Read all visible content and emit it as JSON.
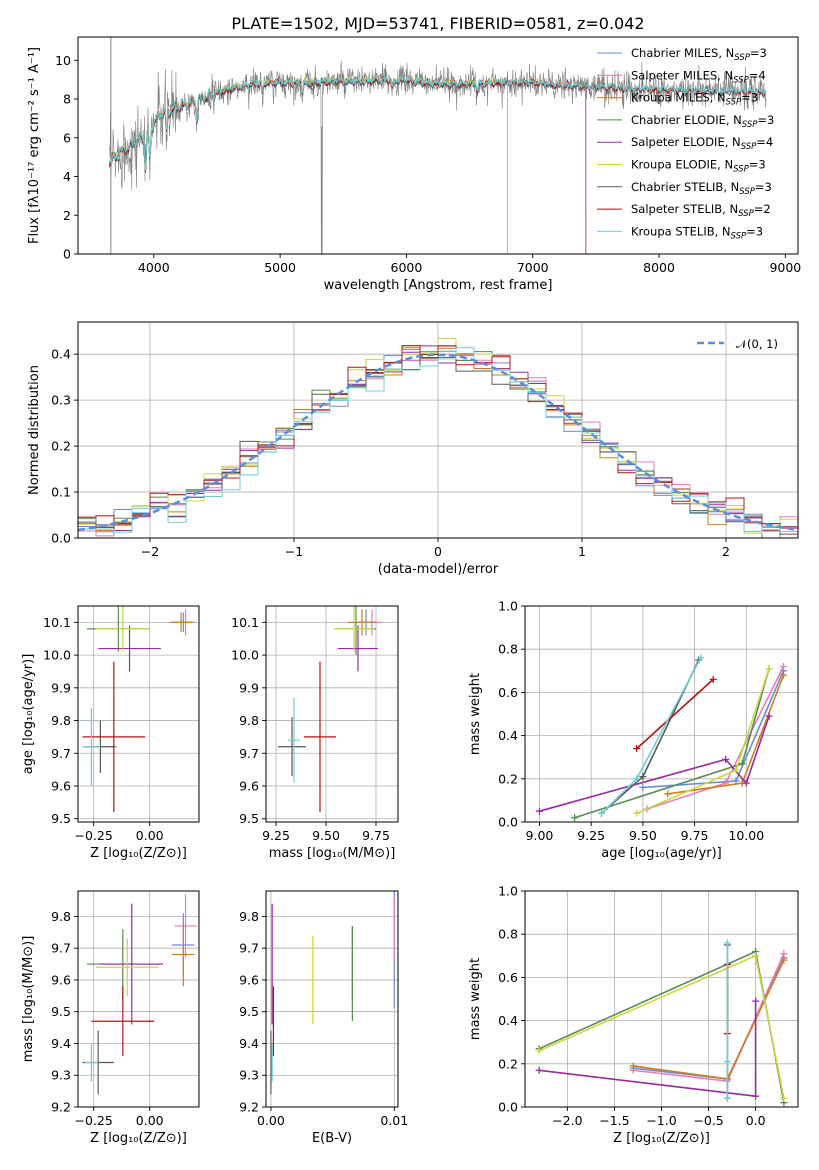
{
  "palette": [
    "#6b8cd7",
    "#e17fbd",
    "#d17d1f",
    "#5a8a55",
    "#9a2aa3",
    "#c9d840",
    "#5a5a5a",
    "#b31515",
    "#6bd0d4"
  ],
  "chart_data": [
    {
      "id": "spectrum",
      "type": "line",
      "title": "PLATE=1502, MJD=53741, FIBERID=0581, z=0.042",
      "xlabel": "wavelength [Angstrom, rest frame]",
      "ylabel": "Flux [fλ10⁻¹⁷ erg cm⁻² s⁻¹ A⁻¹]",
      "xlim": [
        3400,
        9100
      ],
      "ylim": [
        0,
        11.2
      ],
      "xticks": [
        4000,
        5000,
        6000,
        7000,
        8000,
        9000
      ],
      "yticks": [
        0,
        2,
        4,
        6,
        8,
        10
      ],
      "grid": false,
      "legend_position": "upper-right",
      "data_color": "#808080",
      "continuum": [
        [
          3650,
          4.7
        ],
        [
          3750,
          5.3
        ],
        [
          3850,
          5.7
        ],
        [
          3950,
          6.3
        ],
        [
          4050,
          7.2
        ],
        [
          4200,
          7.6
        ],
        [
          4400,
          8.1
        ],
        [
          4600,
          8.5
        ],
        [
          4800,
          8.8
        ],
        [
          5000,
          8.85
        ],
        [
          5200,
          8.8
        ],
        [
          5400,
          8.9
        ],
        [
          5600,
          8.9
        ],
        [
          5800,
          8.95
        ],
        [
          6000,
          8.95
        ],
        [
          6200,
          8.8
        ],
        [
          6400,
          8.75
        ],
        [
          6600,
          8.8
        ],
        [
          6800,
          8.85
        ],
        [
          7000,
          8.85
        ],
        [
          7200,
          8.7
        ],
        [
          7400,
          8.65
        ],
        [
          7600,
          8.6
        ],
        [
          7800,
          8.5
        ],
        [
          8000,
          8.5
        ],
        [
          8200,
          8.45
        ],
        [
          8400,
          8.4
        ],
        [
          8600,
          8.4
        ],
        [
          8800,
          8.35
        ]
      ],
      "models": [
        {
          "name": "Chabrier MILES, N_SSP=3",
          "xend": 7420
        },
        {
          "name": "Salpeter MILES, N_SSP=4",
          "xend": 7420
        },
        {
          "name": "Kroupa MILES, N_SSP=3",
          "xend": 7420
        },
        {
          "name": "Chabrier ELODIE, N_SSP=3",
          "xend": 6800
        },
        {
          "name": "Salpeter ELODIE, N_SSP=4",
          "xend": 6800
        },
        {
          "name": "Kroupa ELODIE, N_SSP=3",
          "xend": 6800
        },
        {
          "name": "Chabrier STELIB, N_SSP=3",
          "xend": 8850
        },
        {
          "name": "Salpeter STELIB, N_SSP=2",
          "xend": 8850
        },
        {
          "name": "Kroupa STELIB, N_SSP=3",
          "xend": 8850
        }
      ]
    },
    {
      "id": "residuals",
      "type": "histogram",
      "xlabel": "(data-model)/error",
      "ylabel": "Normed distribution",
      "xlim": [
        -2.5,
        2.5
      ],
      "ylim": [
        0,
        0.47
      ],
      "xticks": [
        -2,
        -1,
        0,
        1,
        2
      ],
      "yticks": [
        0.0,
        0.1,
        0.2,
        0.3,
        0.4
      ],
      "grid": true,
      "bin_width": 0.125,
      "legend_position": "upper-right",
      "reference_curve": {
        "name": "𝒩(0, 1)",
        "mean": 0,
        "sigma": 1,
        "color": "#5b8fe0"
      }
    },
    {
      "id": "age-vs-z",
      "type": "errorbar",
      "xlabel": "Z [log₁₀(Z/Z⊙)]",
      "ylabel": "age  [log₁₀(age/yr)]",
      "xlim": [
        -0.32,
        0.22
      ],
      "ylim": [
        9.49,
        10.15
      ],
      "xticks": [
        -0.25,
        0.0
      ],
      "yticks": [
        9.5,
        9.6,
        9.7,
        9.8,
        9.9,
        10.0,
        10.1
      ],
      "grid": true,
      "points": [
        {
          "x": 0.15,
          "y": 10.1,
          "xerr": 0.05,
          "yerr": 0.03
        },
        {
          "x": 0.16,
          "y": 10.1,
          "xerr": 0.04,
          "yerr": 0.04
        },
        {
          "x": 0.14,
          "y": 10.1,
          "xerr": 0.05,
          "yerr": 0.03
        },
        {
          "x": -0.14,
          "y": 10.08,
          "xerr": 0.14,
          "yerr": 0.07
        },
        {
          "x": -0.09,
          "y": 10.02,
          "xerr": 0.14,
          "yerr": 0.07
        },
        {
          "x": -0.12,
          "y": 10.08,
          "xerr": 0.12,
          "yerr": 0.07
        },
        {
          "x": -0.22,
          "y": 9.72,
          "xerr": 0.07,
          "yerr": 0.08
        },
        {
          "x": -0.16,
          "y": 9.75,
          "xerr": 0.14,
          "yerr": 0.23
        },
        {
          "x": -0.26,
          "y": 9.72,
          "xerr": 0.04,
          "yerr": 0.12
        }
      ]
    },
    {
      "id": "age-vs-mass",
      "type": "errorbar",
      "xlabel": "mass [log₁₀(M/M⊙)]",
      "ylabel": "",
      "xlim": [
        9.2,
        9.86
      ],
      "ylim": [
        9.49,
        10.15
      ],
      "xticks": [
        9.25,
        9.5,
        9.75
      ],
      "yticks": [
        9.5,
        9.6,
        9.7,
        9.8,
        9.9,
        10.0,
        10.1
      ],
      "grid": true,
      "points": [
        {
          "x": 9.7,
          "y": 10.1,
          "xerr": 0.05,
          "yerr": 0.04
        },
        {
          "x": 9.73,
          "y": 10.1,
          "xerr": 0.05,
          "yerr": 0.04
        },
        {
          "x": 9.68,
          "y": 10.1,
          "xerr": 0.07,
          "yerr": 0.04
        },
        {
          "x": 9.65,
          "y": 10.08,
          "xerr": 0.1,
          "yerr": 0.08
        },
        {
          "x": 9.66,
          "y": 10.02,
          "xerr": 0.1,
          "yerr": 0.07
        },
        {
          "x": 9.64,
          "y": 10.08,
          "xerr": 0.1,
          "yerr": 0.07
        },
        {
          "x": 9.33,
          "y": 9.72,
          "xerr": 0.07,
          "yerr": 0.09
        },
        {
          "x": 9.47,
          "y": 9.75,
          "xerr": 0.08,
          "yerr": 0.23
        },
        {
          "x": 9.34,
          "y": 9.74,
          "xerr": 0.03,
          "yerr": 0.13
        }
      ]
    },
    {
      "id": "weight-vs-age",
      "type": "line",
      "xlabel": "age  [log₁₀(age/yr)]",
      "ylabel": "mass weight",
      "xlim": [
        8.93,
        10.25
      ],
      "ylim": [
        0,
        1.0
      ],
      "xticks": [
        9.0,
        9.25,
        9.5,
        9.75,
        10.0
      ],
      "yticks": [
        0.0,
        0.2,
        0.4,
        0.6,
        0.8,
        1.0
      ],
      "grid": true,
      "series": [
        {
          "points": [
            [
              9.5,
              0.16
            ],
            [
              9.95,
              0.19
            ],
            [
              10.18,
              0.7
            ]
          ]
        },
        {
          "points": [
            [
              9.52,
              0.06
            ],
            [
              9.9,
              0.18
            ],
            [
              10.18,
              0.72
            ]
          ]
        },
        {
          "points": [
            [
              9.62,
              0.13
            ],
            [
              9.98,
              0.18
            ],
            [
              10.18,
              0.68
            ]
          ]
        },
        {
          "points": [
            [
              9.17,
              0.02
            ],
            [
              9.98,
              0.27
            ],
            [
              10.11,
              0.71
            ]
          ]
        },
        {
          "points": [
            [
              9.0,
              0.05
            ],
            [
              9.9,
              0.29
            ],
            [
              10.0,
              0.18
            ],
            [
              10.11,
              0.49
            ]
          ]
        },
        {
          "points": [
            [
              9.47,
              0.04
            ],
            [
              9.95,
              0.24
            ],
            [
              10.11,
              0.71
            ]
          ]
        },
        {
          "points": [
            [
              9.3,
              0.04
            ],
            [
              9.5,
              0.21
            ],
            [
              9.77,
              0.75
            ]
          ]
        },
        {
          "points": [
            [
              9.47,
              0.34
            ],
            [
              9.84,
              0.66
            ]
          ]
        },
        {
          "points": [
            [
              9.3,
              0.04
            ],
            [
              9.47,
              0.2
            ],
            [
              9.78,
              0.76
            ]
          ]
        }
      ]
    },
    {
      "id": "mass-vs-z",
      "type": "errorbar",
      "xlabel": "Z [log₁₀(Z/Z⊙)]",
      "ylabel": "mass [log₁₀(M/M⊙)]",
      "xlim": [
        -0.32,
        0.22
      ],
      "ylim": [
        9.2,
        9.88
      ],
      "xticks": [
        -0.25,
        0.0
      ],
      "yticks": [
        9.2,
        9.3,
        9.4,
        9.5,
        9.6,
        9.7,
        9.8
      ],
      "grid": true,
      "points": [
        {
          "x": 0.15,
          "y": 9.71,
          "xerr": 0.05,
          "yerr": 0.1
        },
        {
          "x": 0.16,
          "y": 9.77,
          "xerr": 0.05,
          "yerr": 0.1
        },
        {
          "x": 0.15,
          "y": 9.68,
          "xerr": 0.05,
          "yerr": 0.1
        },
        {
          "x": -0.12,
          "y": 9.65,
          "xerr": 0.16,
          "yerr": 0.11
        },
        {
          "x": -0.08,
          "y": 9.65,
          "xerr": 0.14,
          "yerr": 0.19
        },
        {
          "x": -0.1,
          "y": 9.64,
          "xerr": 0.14,
          "yerr": 0.09
        },
        {
          "x": -0.23,
          "y": 9.34,
          "xerr": 0.07,
          "yerr": 0.1
        },
        {
          "x": -0.12,
          "y": 9.47,
          "xerr": 0.14,
          "yerr": 0.11
        },
        {
          "x": -0.26,
          "y": 9.34,
          "xerr": 0.03,
          "yerr": 0.06
        }
      ]
    },
    {
      "id": "mass-vs-ebv",
      "type": "errorbar",
      "xlabel": "E(B-V)",
      "ylabel": "",
      "xlim": [
        -0.0004,
        0.0103
      ],
      "ylim": [
        9.2,
        9.88
      ],
      "xticks": [
        0.0,
        0.01
      ],
      "yticks": [
        9.2,
        9.3,
        9.4,
        9.5,
        9.6,
        9.7,
        9.8
      ],
      "grid": true,
      "points": [
        {
          "x": 0.01,
          "y": 9.7,
          "xerr": 0,
          "yerr": 0.19
        },
        {
          "x": 0.01,
          "y": 9.76,
          "xerr": 0,
          "yerr": 0.1
        },
        {
          "x": 0.0066,
          "y": 9.65,
          "xerr": 0,
          "yerr": 0.12
        },
        {
          "x": 0.0066,
          "y": 9.62,
          "xerr": 0,
          "yerr": 0.15
        },
        {
          "x": 0.0001,
          "y": 9.65,
          "xerr": 0,
          "yerr": 0.19
        },
        {
          "x": 0.0034,
          "y": 9.6,
          "xerr": 0,
          "yerr": 0.14
        },
        {
          "x": 0.0,
          "y": 9.34,
          "xerr": 0,
          "yerr": 0.1
        },
        {
          "x": 0.0002,
          "y": 9.47,
          "xerr": 0,
          "yerr": 0.11
        },
        {
          "x": 0.0001,
          "y": 9.34,
          "xerr": 0,
          "yerr": 0.06
        }
      ]
    },
    {
      "id": "weight-vs-z",
      "type": "line",
      "xlabel": "Z [log₁₀(Z/Z⊙)]",
      "ylabel": "mass weight",
      "xlim": [
        -2.45,
        0.45
      ],
      "ylim": [
        0,
        1.0
      ],
      "xticks": [
        -2.0,
        -1.5,
        -1.0,
        -0.5,
        0.0
      ],
      "yticks": [
        0.0,
        0.2,
        0.4,
        0.6,
        0.8,
        1.0
      ],
      "grid": true,
      "series": [
        {
          "points": [
            [
              -1.3,
              0.18
            ],
            [
              -0.3,
              0.13
            ],
            [
              0.3,
              0.69
            ]
          ]
        },
        {
          "points": [
            [
              -1.3,
              0.17
            ],
            [
              -0.3,
              0.12
            ],
            [
              0.3,
              0.71
            ]
          ]
        },
        {
          "points": [
            [
              -1.3,
              0.19
            ],
            [
              -0.3,
              0.13
            ],
            [
              0.3,
              0.68
            ]
          ]
        },
        {
          "points": [
            [
              -2.3,
              0.27
            ],
            [
              0.0,
              0.72
            ],
            [
              0.3,
              0.02
            ]
          ]
        },
        {
          "points": [
            [
              -2.3,
              0.17
            ],
            [
              0.0,
              0.05
            ],
            [
              0.0,
              0.49
            ]
          ]
        },
        {
          "points": [
            [
              -2.3,
              0.26
            ],
            [
              0.0,
              0.7
            ],
            [
              0.3,
              0.04
            ]
          ]
        },
        {
          "points": [
            [
              -0.3,
              0.04
            ],
            [
              -0.3,
              0.75
            ]
          ]
        },
        {
          "points": [
            [
              -0.3,
              0.34
            ],
            [
              -0.3,
              0.66
            ]
          ]
        },
        {
          "points": [
            [
              -0.3,
              0.04
            ],
            [
              -0.3,
              0.21
            ],
            [
              -0.3,
              0.76
            ]
          ]
        }
      ]
    }
  ]
}
